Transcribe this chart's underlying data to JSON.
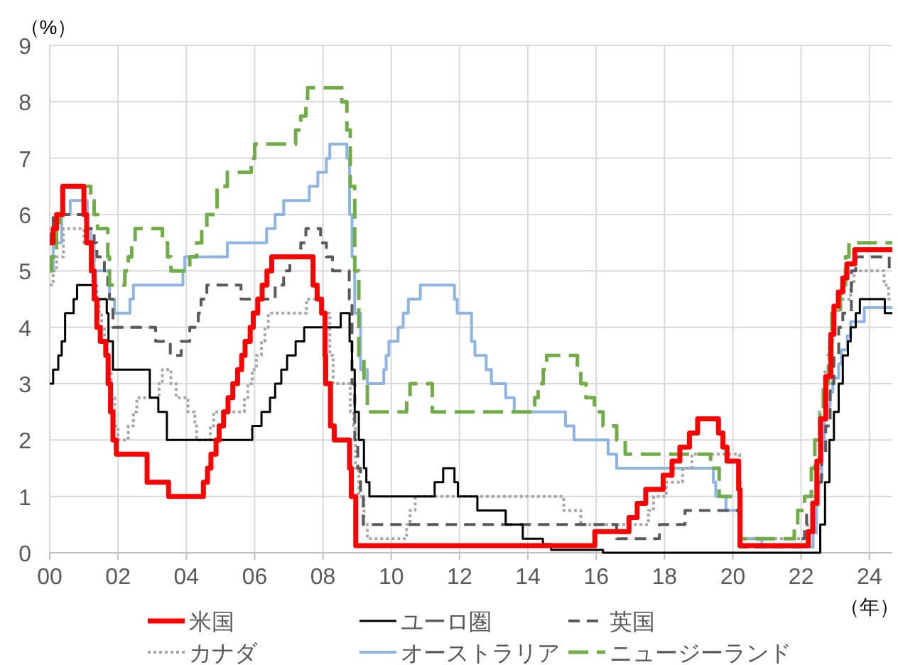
{
  "chart_data": {
    "type": "step",
    "ylabel": "（%）",
    "xlabel": "（年）",
    "xlim": [
      2000,
      2024.67
    ],
    "ylim": [
      0,
      9
    ],
    "xticks": [
      {
        "value": 2000,
        "label": "00"
      },
      {
        "value": 2002,
        "label": "02"
      },
      {
        "value": 2004,
        "label": "04"
      },
      {
        "value": 2006,
        "label": "06"
      },
      {
        "value": 2008,
        "label": "08"
      },
      {
        "value": 2010,
        "label": "10"
      },
      {
        "value": 2012,
        "label": "12"
      },
      {
        "value": 2014,
        "label": "14"
      },
      {
        "value": 2016,
        "label": "16"
      },
      {
        "value": 2018,
        "label": "18"
      },
      {
        "value": 2020,
        "label": "20"
      },
      {
        "value": 2022,
        "label": "22"
      },
      {
        "value": 2024,
        "label": "24"
      }
    ],
    "yticks": [
      0,
      1,
      2,
      3,
      4,
      5,
      6,
      7,
      8,
      9
    ],
    "grid": true,
    "legend": "bottom",
    "series": [
      {
        "name": "米国",
        "color": "#ff0000",
        "line_style": "solid",
        "x": [
          2000.0,
          2000.1,
          2000.2,
          2000.38,
          2001.0,
          2001.08,
          2001.22,
          2001.3,
          2001.38,
          2001.48,
          2001.64,
          2001.71,
          2001.78,
          2001.85,
          2001.95,
          2002.85,
          2003.48,
          2004.5,
          2004.62,
          2004.72,
          2004.87,
          2004.96,
          2005.09,
          2005.22,
          2005.36,
          2005.5,
          2005.62,
          2005.72,
          2005.87,
          2005.96,
          2006.09,
          2006.22,
          2006.36,
          2006.5,
          2007.71,
          2007.83,
          2007.96,
          2008.06,
          2008.08,
          2008.22,
          2008.33,
          2008.78,
          2008.83,
          2008.96,
          2015.96,
          2016.96,
          2017.2,
          2017.45,
          2017.96,
          2018.22,
          2018.45,
          2018.73,
          2018.97,
          2019.58,
          2019.71,
          2019.83,
          2020.17,
          2020.21,
          2022.21,
          2022.34,
          2022.46,
          2022.57,
          2022.72,
          2022.87,
          2022.96,
          2023.09,
          2023.22,
          2023.34,
          2023.57,
          2024.67
        ],
        "values": [
          5.5,
          5.75,
          6.0,
          6.5,
          6.0,
          5.5,
          5.0,
          4.5,
          4.0,
          3.75,
          3.5,
          3.0,
          2.5,
          2.0,
          1.75,
          1.25,
          1.0,
          1.25,
          1.5,
          1.75,
          2.0,
          2.25,
          2.5,
          2.75,
          3.0,
          3.25,
          3.5,
          3.75,
          4.0,
          4.25,
          4.5,
          4.75,
          5.0,
          5.25,
          4.75,
          4.5,
          4.25,
          3.5,
          3.0,
          2.25,
          2.0,
          1.5,
          1.0,
          0.125,
          0.375,
          0.625,
          0.875,
          1.125,
          1.375,
          1.625,
          1.875,
          2.125,
          2.375,
          2.125,
          1.875,
          1.625,
          1.125,
          0.125,
          0.375,
          0.875,
          1.625,
          2.375,
          3.125,
          3.875,
          4.375,
          4.625,
          4.875,
          5.125,
          5.375,
          5.375
        ]
      },
      {
        "name": "ユーロ圏",
        "color": "#000000",
        "line_style": "solid",
        "x": [
          2000.0,
          2000.1,
          2000.25,
          2000.35,
          2000.45,
          2000.7,
          2000.8,
          2001.35,
          2001.67,
          2001.72,
          2001.85,
          2002.93,
          2003.18,
          2003.43,
          2005.93,
          2006.2,
          2006.45,
          2006.6,
          2006.78,
          2006.95,
          2007.2,
          2007.45,
          2008.52,
          2008.78,
          2008.85,
          2008.93,
          2009.05,
          2009.2,
          2009.27,
          2009.36,
          2011.27,
          2011.52,
          2011.85,
          2011.95,
          2012.52,
          2013.35,
          2013.85,
          2014.44,
          2014.68,
          2016.2,
          2022.56,
          2022.7,
          2022.83,
          2022.96,
          2023.1,
          2023.22,
          2023.37,
          2023.45,
          2023.6,
          2023.72,
          2024.45,
          2024.67
        ],
        "values": [
          3.0,
          3.25,
          3.5,
          3.75,
          4.25,
          4.5,
          4.75,
          4.5,
          4.25,
          3.75,
          3.25,
          2.75,
          2.5,
          2.0,
          2.25,
          2.5,
          2.75,
          3.0,
          3.25,
          3.5,
          3.75,
          4.0,
          4.25,
          3.75,
          3.25,
          2.5,
          2.0,
          1.5,
          1.25,
          1.0,
          1.25,
          1.5,
          1.25,
          1.0,
          0.75,
          0.5,
          0.25,
          0.15,
          0.05,
          0.0,
          0.5,
          1.25,
          2.0,
          2.5,
          3.0,
          3.5,
          3.75,
          4.0,
          4.25,
          4.5,
          4.25,
          4.25
        ]
      },
      {
        "name": "英国",
        "color": "#595959",
        "line_style": "dashed",
        "x": [
          2000.0,
          2000.04,
          2000.1,
          2001.1,
          2001.3,
          2001.38,
          2001.6,
          2001.7,
          2001.75,
          2001.85,
          2003.1,
          2003.53,
          2003.85,
          2004.1,
          2004.35,
          2004.43,
          2004.6,
          2005.6,
          2006.6,
          2006.85,
          2007.03,
          2007.35,
          2007.5,
          2007.93,
          2008.1,
          2008.28,
          2008.77,
          2008.85,
          2008.93,
          2009.02,
          2009.1,
          2009.18,
          2016.6,
          2017.85,
          2018.6,
          2020.2,
          2020.22,
          2021.96,
          2022.1,
          2022.16,
          2022.35,
          2022.46,
          2022.6,
          2022.72,
          2022.85,
          2022.96,
          2023.1,
          2023.22,
          2023.47,
          2023.6,
          2024.58,
          2024.67
        ],
        "values": [
          5.5,
          5.75,
          6.0,
          5.75,
          5.5,
          5.25,
          5.0,
          4.75,
          4.5,
          4.0,
          3.75,
          3.5,
          3.75,
          4.0,
          4.25,
          4.5,
          4.75,
          4.5,
          4.75,
          5.0,
          5.25,
          5.5,
          5.75,
          5.5,
          5.25,
          5.0,
          4.5,
          3.0,
          2.0,
          1.5,
          1.0,
          0.5,
          0.25,
          0.5,
          0.75,
          0.25,
          0.1,
          0.25,
          0.5,
          0.75,
          1.0,
          1.25,
          1.75,
          2.25,
          3.0,
          3.5,
          4.0,
          4.25,
          5.0,
          5.25,
          5.0,
          5.0
        ]
      },
      {
        "name": "カナダ",
        "color": "#a6a6a6",
        "line_style": "dotted",
        "x": [
          2000.0,
          2000.1,
          2000.2,
          2000.4,
          2001.0,
          2001.2,
          2001.3,
          2001.38,
          2001.45,
          2001.52,
          2001.6,
          2001.68,
          2001.72,
          2001.8,
          2001.9,
          2002.0,
          2002.3,
          2002.45,
          2002.55,
          2003.2,
          2003.3,
          2003.55,
          2003.7,
          2004.05,
          2004.25,
          2004.3,
          2004.7,
          2004.8,
          2005.7,
          2005.8,
          2005.93,
          2006.05,
          2006.2,
          2006.3,
          2006.4,
          2007.52,
          2007.93,
          2008.2,
          2008.3,
          2008.8,
          2008.9,
          2008.95,
          2009.05,
          2009.2,
          2009.3,
          2010.45,
          2010.55,
          2010.7,
          2015.05,
          2015.55,
          2017.53,
          2017.68,
          2018.05,
          2018.53,
          2018.8,
          2020.2,
          2020.23,
          2020.25,
          2022.2,
          2022.33,
          2022.45,
          2022.53,
          2022.7,
          2022.82,
          2022.93,
          2023.07,
          2023.45,
          2023.55,
          2024.43,
          2024.56,
          2024.67
        ],
        "values": [
          4.75,
          5.0,
          5.25,
          5.75,
          5.5,
          5.25,
          4.75,
          4.5,
          4.25,
          4.0,
          3.75,
          3.5,
          3.25,
          2.75,
          2.25,
          2.0,
          2.25,
          2.5,
          2.75,
          3.0,
          3.25,
          3.0,
          2.75,
          2.5,
          2.25,
          2.0,
          2.25,
          2.5,
          2.75,
          3.0,
          3.25,
          3.5,
          3.75,
          4.0,
          4.25,
          4.5,
          4.25,
          3.5,
          3.0,
          2.5,
          2.25,
          1.5,
          1.0,
          0.5,
          0.25,
          0.5,
          0.75,
          1.0,
          0.75,
          0.5,
          0.75,
          1.0,
          1.25,
          1.5,
          1.75,
          1.25,
          0.75,
          0.25,
          0.5,
          1.0,
          1.5,
          2.5,
          3.25,
          3.75,
          4.25,
          4.5,
          4.75,
          5.0,
          4.75,
          4.5,
          4.5
        ]
      },
      {
        "name": "オーストラリア",
        "color": "#8db4e2",
        "line_style": "solid",
        "x": [
          2000.0,
          2000.1,
          2000.35,
          2000.6,
          2001.1,
          2001.2,
          2001.3,
          2001.75,
          2001.9,
          2002.35,
          2002.45,
          2003.9,
          2003.95,
          2005.2,
          2006.35,
          2006.6,
          2006.85,
          2007.6,
          2007.85,
          2008.1,
          2008.2,
          2008.7,
          2008.78,
          2008.85,
          2008.93,
          2009.1,
          2009.3,
          2009.78,
          2009.85,
          2009.93,
          2010.2,
          2010.35,
          2010.5,
          2010.85,
          2011.85,
          2011.93,
          2012.35,
          2012.45,
          2012.78,
          2012.93,
          2013.35,
          2013.6,
          2015.1,
          2015.35,
          2016.35,
          2016.6,
          2019.43,
          2019.5,
          2019.8,
          2020.2,
          2020.22,
          2020.85,
          2022.35,
          2022.45,
          2022.52,
          2022.6,
          2022.68,
          2022.75,
          2022.85,
          2022.93,
          2023.1,
          2023.18,
          2023.35,
          2023.45,
          2023.85,
          2024.67
        ],
        "values": [
          5.0,
          5.5,
          6.0,
          6.25,
          5.75,
          5.5,
          5.0,
          4.5,
          4.25,
          4.5,
          4.75,
          5.0,
          5.25,
          5.5,
          5.75,
          6.0,
          6.25,
          6.5,
          6.75,
          7.0,
          7.25,
          7.0,
          6.0,
          5.25,
          4.25,
          3.25,
          3.0,
          3.25,
          3.5,
          3.75,
          4.0,
          4.25,
          4.5,
          4.75,
          4.5,
          4.25,
          3.75,
          3.5,
          3.25,
          3.0,
          2.75,
          2.5,
          2.25,
          2.0,
          1.75,
          1.5,
          1.25,
          1.0,
          0.75,
          0.5,
          0.25,
          0.1,
          0.35,
          0.85,
          1.35,
          1.85,
          2.35,
          2.6,
          2.85,
          3.1,
          3.35,
          3.6,
          3.85,
          4.1,
          4.35,
          4.35
        ]
      },
      {
        "name": "ニュージーランド",
        "color": "#70ad47",
        "line_style": "dashed",
        "x": [
          2000.0,
          2000.05,
          2000.2,
          2000.3,
          2000.4,
          2001.2,
          2001.3,
          2001.4,
          2001.7,
          2001.75,
          2002.2,
          2002.3,
          2002.4,
          2002.5,
          2003.3,
          2003.45,
          2003.55,
          2004.1,
          2004.3,
          2004.45,
          2004.6,
          2004.9,
          2005.2,
          2005.9,
          2006.0,
          2007.2,
          2007.35,
          2007.5,
          2007.55,
          2008.55,
          2008.7,
          2008.8,
          2008.93,
          2009.05,
          2009.2,
          2009.3,
          2010.45,
          2010.55,
          2011.2,
          2014.2,
          2014.3,
          2014.45,
          2014.55,
          2015.45,
          2015.55,
          2015.7,
          2015.95,
          2016.2,
          2016.6,
          2016.85,
          2019.35,
          2019.6,
          2020.2,
          2021.8,
          2021.9,
          2022.1,
          2022.3,
          2022.4,
          2022.55,
          2022.65,
          2022.8,
          2022.9,
          2023.15,
          2023.3,
          2023.4,
          2024.67
        ],
        "values": [
          5.0,
          5.25,
          5.75,
          6.0,
          6.5,
          6.25,
          6.0,
          5.75,
          5.25,
          4.75,
          5.0,
          5.25,
          5.5,
          5.75,
          5.5,
          5.25,
          5.0,
          5.25,
          5.5,
          5.75,
          6.0,
          6.5,
          6.75,
          7.0,
          7.25,
          7.5,
          7.75,
          8.0,
          8.25,
          8.0,
          7.5,
          6.5,
          5.0,
          3.5,
          3.0,
          2.5,
          2.75,
          3.0,
          2.5,
          2.75,
          3.0,
          3.25,
          3.5,
          3.25,
          3.0,
          2.75,
          2.5,
          2.25,
          2.0,
          1.75,
          1.5,
          1.0,
          0.25,
          0.5,
          0.75,
          1.0,
          1.5,
          2.0,
          2.5,
          3.0,
          3.5,
          4.25,
          4.75,
          5.25,
          5.5,
          5.5
        ]
      }
    ]
  }
}
